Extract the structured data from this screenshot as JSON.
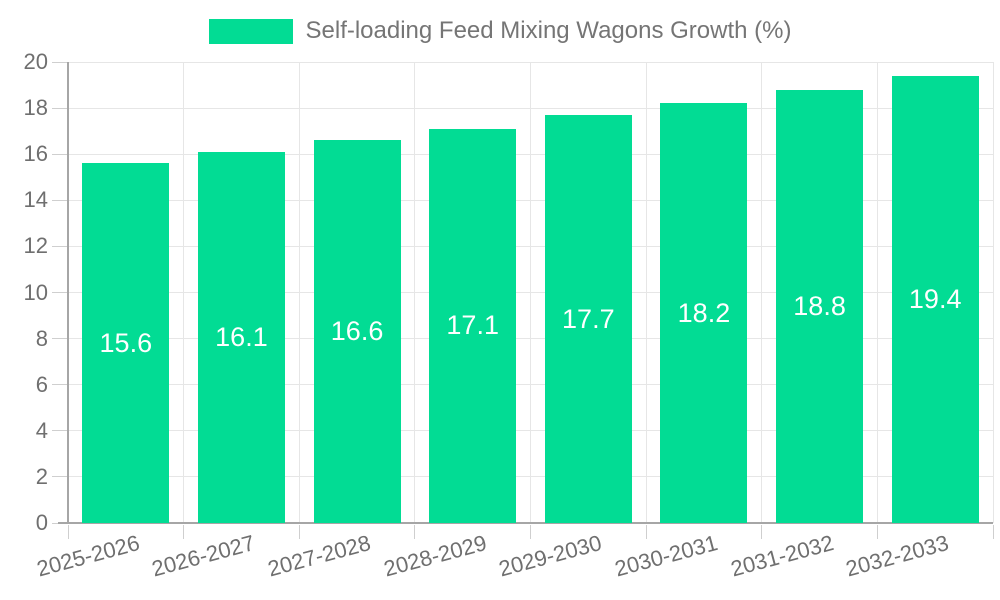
{
  "legend": {
    "label": "Self-loading Feed Mixing Wagons Growth (%)"
  },
  "chart_data": {
    "type": "bar",
    "title": "Self-loading Feed Mixing Wagons Growth (%)",
    "categories": [
      "2025-2026",
      "2026-2027",
      "2027-2028",
      "2028-2029",
      "2029-2030",
      "2030-2031",
      "2031-2032",
      "2032-2033"
    ],
    "series": [
      {
        "name": "Self-loading Feed Mixing Wagons Growth (%)",
        "values": [
          15.6,
          16.1,
          16.6,
          17.1,
          17.7,
          18.2,
          18.8,
          19.4
        ]
      }
    ],
    "value_labels": [
      "15.6",
      "16.1",
      "16.6",
      "17.1",
      "17.7",
      "18.2",
      "18.8",
      "19.4"
    ],
    "xlabel": "",
    "ylabel": "",
    "ylim": [
      0,
      20
    ],
    "ytick_step": 2,
    "yticks": [
      0,
      2,
      4,
      6,
      8,
      10,
      12,
      14,
      16,
      18,
      20
    ],
    "grid": true,
    "legend_position": "top-center",
    "x_label_rotation_deg": -15,
    "colors": {
      "bar": "#02dc94",
      "grid": "#e6e6e6",
      "axis": "#a6a6a6",
      "tick": "#cfcfcf",
      "tick_label": "#6f6f6f",
      "legend_text": "#757575",
      "value_label": "#ffffff",
      "background": "#ffffff"
    }
  }
}
